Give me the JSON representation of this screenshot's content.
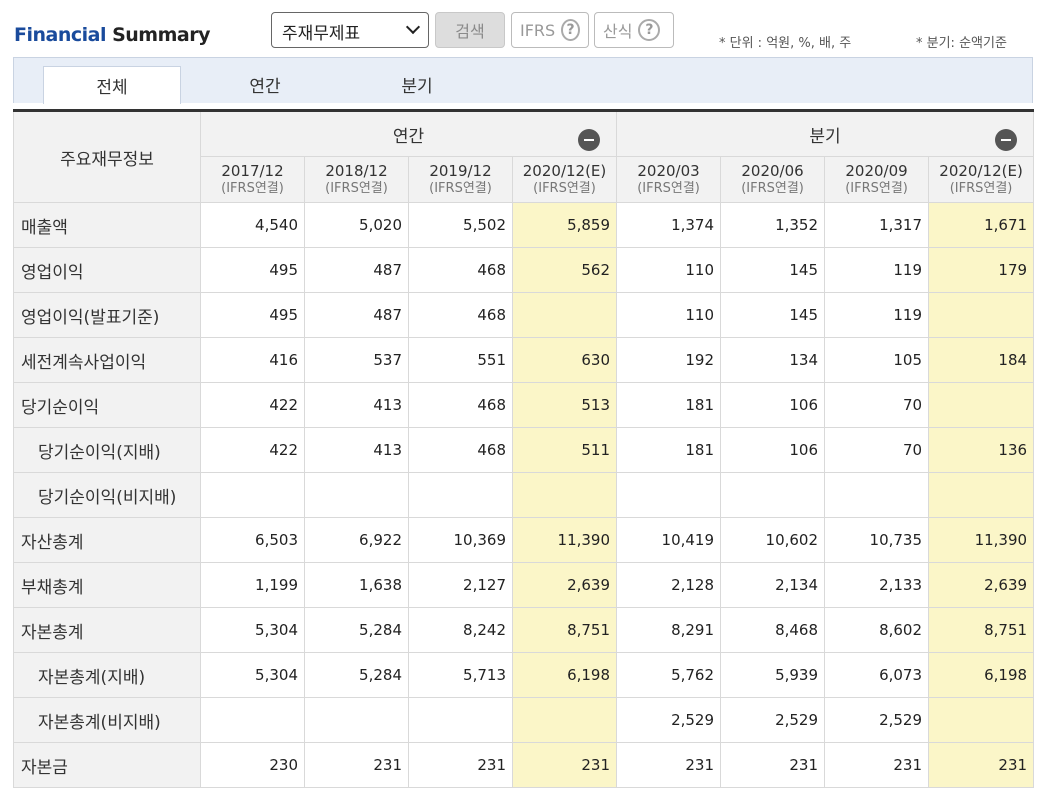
{
  "brand": {
    "part1": "Financial",
    "part2": " Summary"
  },
  "controls": {
    "select_value": "주재무제표",
    "search_label": "검색",
    "ifrs_label": "IFRS",
    "calc_label": "산식",
    "help_glyph": "?"
  },
  "notes": {
    "unit": "* 단위 : 억원, %, 배, 주",
    "quarter": "* 분기: 순액기준"
  },
  "tabs": [
    {
      "label": "전체"
    },
    {
      "label": "연간"
    },
    {
      "label": "분기"
    }
  ],
  "table": {
    "corner_label": "주요재무정보",
    "groups": [
      {
        "label": "연간"
      },
      {
        "label": "분기"
      }
    ],
    "columns": [
      {
        "period": "2017/12",
        "basis": "(IFRS연결)"
      },
      {
        "period": "2018/12",
        "basis": "(IFRS연결)"
      },
      {
        "period": "2019/12",
        "basis": "(IFRS연결)"
      },
      {
        "period": "2020/12(E)",
        "basis": "(IFRS연결)"
      },
      {
        "period": "2020/03",
        "basis": "(IFRS연결)"
      },
      {
        "period": "2020/06",
        "basis": "(IFRS연결)"
      },
      {
        "period": "2020/09",
        "basis": "(IFRS연결)"
      },
      {
        "period": "2020/12(E)",
        "basis": "(IFRS연결)"
      }
    ],
    "highlight_color": "#fbf6c8",
    "rows": [
      {
        "label": "매출액",
        "indent": false,
        "values": [
          "4,540",
          "5,020",
          "5,502",
          "5,859",
          "1,374",
          "1,352",
          "1,317",
          "1,671"
        ]
      },
      {
        "label": "영업이익",
        "indent": false,
        "values": [
          "495",
          "487",
          "468",
          "562",
          "110",
          "145",
          "119",
          "179"
        ]
      },
      {
        "label": "영업이익(발표기준)",
        "indent": false,
        "values": [
          "495",
          "487",
          "468",
          "",
          "110",
          "145",
          "119",
          ""
        ]
      },
      {
        "label": "세전계속사업이익",
        "indent": false,
        "values": [
          "416",
          "537",
          "551",
          "630",
          "192",
          "134",
          "105",
          "184"
        ]
      },
      {
        "label": "당기순이익",
        "indent": false,
        "values": [
          "422",
          "413",
          "468",
          "513",
          "181",
          "106",
          "70",
          ""
        ]
      },
      {
        "label": "당기순이익(지배)",
        "indent": true,
        "values": [
          "422",
          "413",
          "468",
          "511",
          "181",
          "106",
          "70",
          "136"
        ]
      },
      {
        "label": "당기순이익(비지배)",
        "indent": true,
        "values": [
          "",
          "",
          "",
          "",
          "",
          "",
          "",
          ""
        ]
      },
      {
        "label": "자산총계",
        "indent": false,
        "values": [
          "6,503",
          "6,922",
          "10,369",
          "11,390",
          "10,419",
          "10,602",
          "10,735",
          "11,390"
        ]
      },
      {
        "label": "부채총계",
        "indent": false,
        "values": [
          "1,199",
          "1,638",
          "2,127",
          "2,639",
          "2,128",
          "2,134",
          "2,133",
          "2,639"
        ]
      },
      {
        "label": "자본총계",
        "indent": false,
        "values": [
          "5,304",
          "5,284",
          "8,242",
          "8,751",
          "8,291",
          "8,468",
          "8,602",
          "8,751"
        ]
      },
      {
        "label": "자본총계(지배)",
        "indent": true,
        "values": [
          "5,304",
          "5,284",
          "5,713",
          "6,198",
          "5,762",
          "5,939",
          "6,073",
          "6,198"
        ]
      },
      {
        "label": "자본총계(비지배)",
        "indent": true,
        "values": [
          "",
          "",
          "",
          "",
          "2,529",
          "2,529",
          "2,529",
          ""
        ]
      },
      {
        "label": "자본금",
        "indent": false,
        "values": [
          "230",
          "231",
          "231",
          "231",
          "231",
          "231",
          "231",
          "231"
        ]
      }
    ]
  }
}
